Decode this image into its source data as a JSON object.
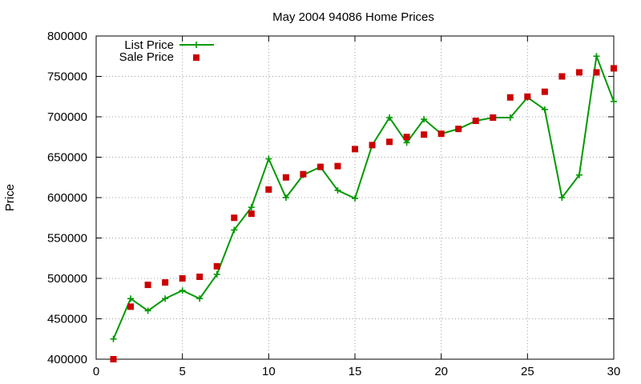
{
  "chart_data": {
    "type": "scatter",
    "title": "May 2004 94086 Home Prices",
    "xlabel": "",
    "ylabel": "Price",
    "xlim": [
      0,
      30
    ],
    "ylim": [
      400000,
      800000
    ],
    "xticks": [
      0,
      5,
      10,
      15,
      20,
      25,
      30
    ],
    "yticks": [
      400000,
      450000,
      500000,
      550000,
      600000,
      650000,
      700000,
      750000,
      800000
    ],
    "grid": true,
    "legend_position": "top-left",
    "series": [
      {
        "name": "List Price",
        "style": "line-with-plus-markers",
        "color": "#009900",
        "points": [
          [
            1,
            425000
          ],
          [
            2,
            475000
          ],
          [
            3,
            460000
          ],
          [
            4,
            475000
          ],
          [
            5,
            485000
          ],
          [
            6,
            475000
          ],
          [
            7,
            505000
          ],
          [
            8,
            560000
          ],
          [
            9,
            588000
          ],
          [
            10,
            648000
          ],
          [
            11,
            600000
          ],
          [
            12,
            628000
          ],
          [
            13,
            638000
          ],
          [
            14,
            609000
          ],
          [
            15,
            599000
          ],
          [
            16,
            665000
          ],
          [
            17,
            699000
          ],
          [
            18,
            668000
          ],
          [
            19,
            697000
          ],
          [
            20,
            679000
          ],
          [
            21,
            685000
          ],
          [
            22,
            695000
          ],
          [
            23,
            699000
          ],
          [
            24,
            699000
          ],
          [
            25,
            724000
          ],
          [
            26,
            709000
          ],
          [
            27,
            600000
          ],
          [
            28,
            628000
          ],
          [
            29,
            775000
          ],
          [
            30,
            719000
          ]
        ]
      },
      {
        "name": "Sale Price",
        "style": "square-markers",
        "color": "#cc0000",
        "points": [
          [
            1,
            400000
          ],
          [
            2,
            465000
          ],
          [
            3,
            492000
          ],
          [
            4,
            495000
          ],
          [
            5,
            500000
          ],
          [
            6,
            502000
          ],
          [
            7,
            515000
          ],
          [
            8,
            575000
          ],
          [
            9,
            580000
          ],
          [
            10,
            610000
          ],
          [
            11,
            625000
          ],
          [
            12,
            629000
          ],
          [
            13,
            638000
          ],
          [
            14,
            639000
          ],
          [
            15,
            660000
          ],
          [
            16,
            665000
          ],
          [
            17,
            669000
          ],
          [
            18,
            675000
          ],
          [
            19,
            678000
          ],
          [
            20,
            679000
          ],
          [
            21,
            685000
          ],
          [
            22,
            695000
          ],
          [
            23,
            699000
          ],
          [
            24,
            724000
          ],
          [
            25,
            725000
          ],
          [
            26,
            731000
          ],
          [
            27,
            750000
          ],
          [
            28,
            755000
          ],
          [
            29,
            755000
          ],
          [
            30,
            760000
          ]
        ]
      }
    ]
  }
}
